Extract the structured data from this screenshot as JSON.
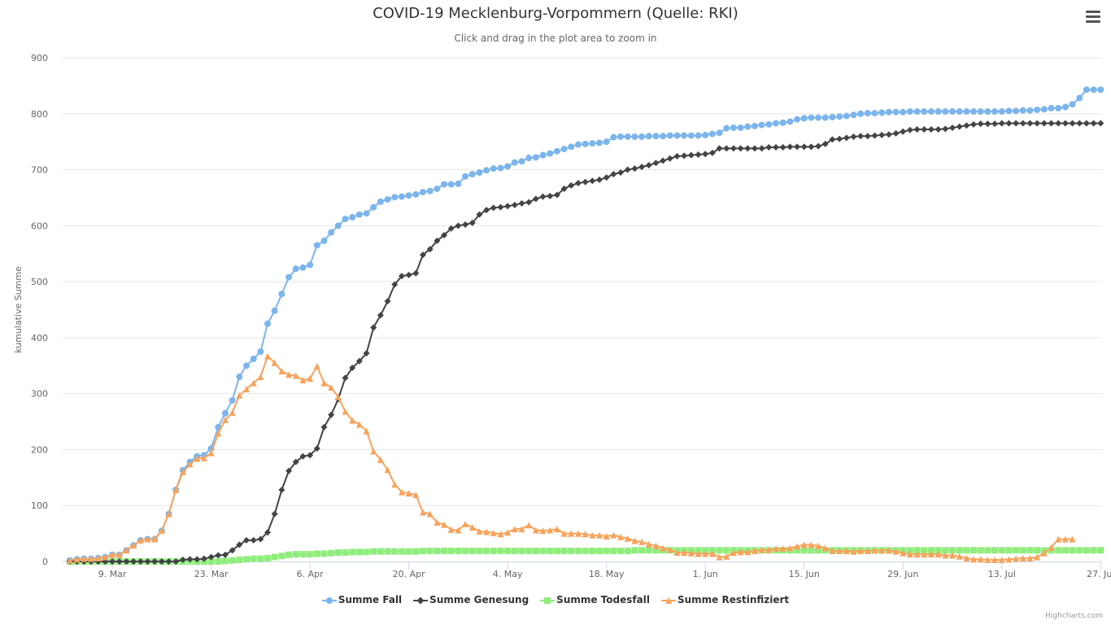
{
  "title": "COVID-19 Mecklenburg-Vorpommern (Quelle: RKI)",
  "subtitle": "Click and drag in the plot area to zoom in",
  "credits": "Highcharts.com",
  "menu_icon": "hamburger-menu-icon",
  "chart_data": {
    "type": "line",
    "title": "COVID-19 Mecklenburg-Vorpommern (Quelle: RKI)",
    "subtitle": "Click and drag in the plot area to zoom in",
    "xlabel": "",
    "ylabel": "kumulative Summe",
    "x_start": "2020-03-03",
    "x_tick_labels": [
      "9. Mar",
      "23. Mar",
      "6. Apr",
      "20. Apr",
      "4. May",
      "18. May",
      "1. Jun",
      "15. Jun",
      "29. Jun",
      "13. Jul",
      "27. Jul"
    ],
    "x_tick_days": [
      6,
      20,
      34,
      48,
      62,
      76,
      90,
      104,
      118,
      132,
      146
    ],
    "y_ticks": [
      0,
      100,
      200,
      300,
      400,
      500,
      600,
      700,
      800,
      900
    ],
    "ylim": [
      0,
      900
    ],
    "grid": true,
    "legend_position": "bottom-center",
    "series": [
      {
        "name": "Summe Fall",
        "color": "#7cb5ec",
        "marker": "circle",
        "values": [
          2,
          4,
          5,
          5,
          6,
          8,
          12,
          12,
          20,
          29,
          38,
          40,
          40,
          55,
          85,
          128,
          163,
          178,
          188,
          190,
          202,
          240,
          265,
          288,
          330,
          350,
          362,
          375,
          425,
          448,
          478,
          508,
          523,
          525,
          530,
          565,
          573,
          588,
          600,
          612,
          615,
          620,
          622,
          633,
          643,
          647,
          651,
          652,
          654,
          656,
          660,
          662,
          666,
          674,
          674,
          675,
          688,
          692,
          695,
          699,
          702,
          703,
          706,
          713,
          715,
          721,
          722,
          726,
          729,
          733,
          737,
          741,
          745,
          746,
          747,
          748,
          750,
          758,
          759,
          759,
          759,
          759,
          760,
          760,
          760,
          761,
          761,
          761,
          761,
          761,
          762,
          764,
          766,
          774,
          775,
          775,
          777,
          778,
          780,
          781,
          783,
          784,
          786,
          790,
          792,
          793,
          793,
          793,
          794,
          795,
          796,
          798,
          800,
          801,
          801,
          802,
          803,
          803,
          803,
          804,
          804,
          804,
          804,
          804,
          804,
          804,
          804,
          804,
          804,
          804,
          804,
          804,
          804,
          805,
          805,
          806,
          806,
          807,
          808,
          810,
          810,
          812,
          817,
          828,
          843,
          843,
          843
        ]
      },
      {
        "name": "Summe Genesung",
        "color": "#434348",
        "marker": "diamond",
        "values": [
          0,
          0,
          0,
          0,
          0,
          0,
          0,
          0,
          0,
          0,
          0,
          0,
          0,
          0,
          0,
          0,
          3,
          4,
          4,
          5,
          8,
          11,
          12,
          20,
          30,
          38,
          38,
          40,
          52,
          85,
          128,
          162,
          178,
          188,
          190,
          202,
          240,
          262,
          290,
          328,
          346,
          358,
          372,
          418,
          440,
          465,
          495,
          510,
          512,
          515,
          548,
          558,
          573,
          583,
          595,
          600,
          602,
          605,
          620,
          628,
          632,
          633,
          635,
          637,
          640,
          642,
          648,
          652,
          653,
          655,
          666,
          672,
          676,
          678,
          680,
          682,
          686,
          692,
          695,
          700,
          702,
          705,
          708,
          712,
          716,
          720,
          724,
          725,
          726,
          727,
          728,
          730,
          738,
          738,
          738,
          738,
          738,
          738,
          738,
          740,
          740,
          740,
          741,
          741,
          741,
          741,
          742,
          746,
          754,
          755,
          757,
          759,
          760,
          760,
          761,
          762,
          763,
          765,
          768,
          771,
          772,
          772,
          772,
          772,
          773,
          775,
          777,
          779,
          781,
          782,
          782,
          782,
          783,
          783,
          783,
          783,
          783,
          783,
          783,
          783,
          783,
          783,
          783,
          783,
          783,
          783,
          783
        ]
      },
      {
        "name": "Summe Todesfall",
        "color": "#90ed7d",
        "marker": "square",
        "values": [
          0,
          0,
          0,
          0,
          0,
          0,
          0,
          0,
          0,
          0,
          0,
          0,
          0,
          0,
          0,
          0,
          0,
          0,
          0,
          0,
          0,
          0,
          1,
          2,
          3,
          4,
          5,
          5,
          6,
          8,
          10,
          12,
          13,
          13,
          13,
          14,
          14,
          15,
          16,
          16,
          17,
          17,
          17,
          18,
          18,
          18,
          18,
          18,
          18,
          18,
          19,
          19,
          19,
          19,
          19,
          19,
          19,
          19,
          19,
          19,
          19,
          19,
          19,
          19,
          19,
          19,
          19,
          19,
          19,
          19,
          19,
          19,
          19,
          19,
          19,
          19,
          19,
          19,
          19,
          19,
          20,
          20,
          20,
          20,
          20,
          20,
          20,
          20,
          20,
          20,
          20,
          20,
          20,
          20,
          20,
          20,
          20,
          20,
          20,
          20,
          20,
          20,
          20,
          20,
          20,
          20,
          20,
          20,
          20,
          20,
          20,
          20,
          20,
          20,
          20,
          20,
          20,
          20,
          20,
          20,
          20,
          20,
          20,
          20,
          20,
          20,
          20,
          20,
          20,
          20,
          20,
          20,
          20,
          20,
          20,
          20,
          20,
          20,
          20,
          20,
          20,
          20,
          20,
          20,
          20,
          20,
          20
        ]
      },
      {
        "name": "Summe Restinfiziert",
        "color": "#f7a35c",
        "marker": "triangle",
        "values": [
          2,
          4,
          5,
          5,
          6,
          8,
          12,
          12,
          20,
          29,
          38,
          40,
          40,
          55,
          85,
          128,
          160,
          174,
          184,
          185,
          194,
          229,
          253,
          266,
          297,
          308,
          319,
          330,
          367,
          355,
          340,
          334,
          332,
          324,
          327,
          349,
          319,
          311,
          294,
          268,
          252,
          245,
          233,
          197,
          182,
          164,
          138,
          124,
          122,
          119,
          88,
          85,
          70,
          66,
          57,
          56,
          67,
          61,
          54,
          53,
          51,
          49,
          52,
          58,
          58,
          65,
          56,
          55,
          56,
          58,
          50,
          50,
          50,
          49,
          47,
          47,
          45,
          47,
          44,
          41,
          37,
          35,
          31,
          28,
          24,
          21,
          16,
          16,
          15,
          14,
          14,
          14,
          8,
          9,
          16,
          17,
          17,
          19,
          21,
          21,
          23,
          23,
          24,
          27,
          30,
          30,
          28,
          24,
          19,
          19,
          19,
          18,
          19,
          19,
          20,
          20,
          20,
          18,
          15,
          13,
          13,
          13,
          13,
          13,
          11,
          11,
          9,
          6,
          4,
          4,
          3,
          3,
          3,
          4,
          5,
          6,
          6,
          8,
          15,
          25,
          40,
          40,
          40
        ]
      }
    ]
  }
}
